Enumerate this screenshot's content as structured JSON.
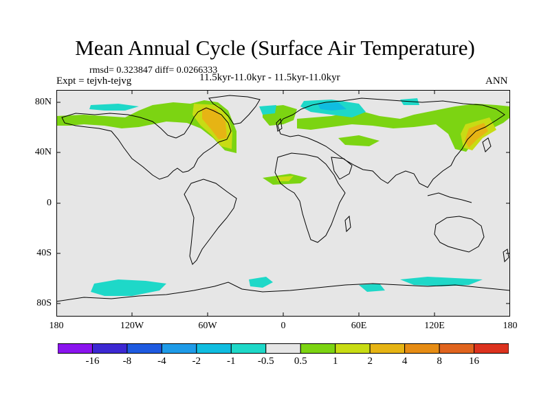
{
  "title": "Mean Annual Cycle (Surface Air Temperature)",
  "stats": "rmsd= 0.323847 diff= 0.0266333",
  "experiment": "Expt = tejvh-tejvg",
  "subtitle": "11.5kyr-11.0kyr - 11.5kyr-11.0kyr",
  "season": "ANN",
  "map": {
    "projection": "cylindrical equidistant",
    "lon_range": [
      -180,
      180
    ],
    "lat_range": [
      -90,
      90
    ],
    "background_color": "#e6e6e6",
    "coastline_color": "#000000",
    "lat_ticks": [
      "80N",
      "40N",
      "0",
      "40S",
      "80S"
    ],
    "lon_ticks": [
      "180",
      "120W",
      "60W",
      "0",
      "60E",
      "120E",
      "180"
    ]
  },
  "colorbar": {
    "labels": [
      "-16",
      "-8",
      "-4",
      "-2",
      "-1",
      "-0.5",
      "0.5",
      "1",
      "2",
      "4",
      "8",
      "16"
    ],
    "colors": [
      "#8a14ee",
      "#3c28d2",
      "#1e5ae0",
      "#1e9be8",
      "#10bde0",
      "#1ed8c8",
      "#e6e6e6",
      "#7cd412",
      "#c8dc14",
      "#e6b414",
      "#e68c14",
      "#e0641e",
      "#dc321e"
    ]
  }
}
